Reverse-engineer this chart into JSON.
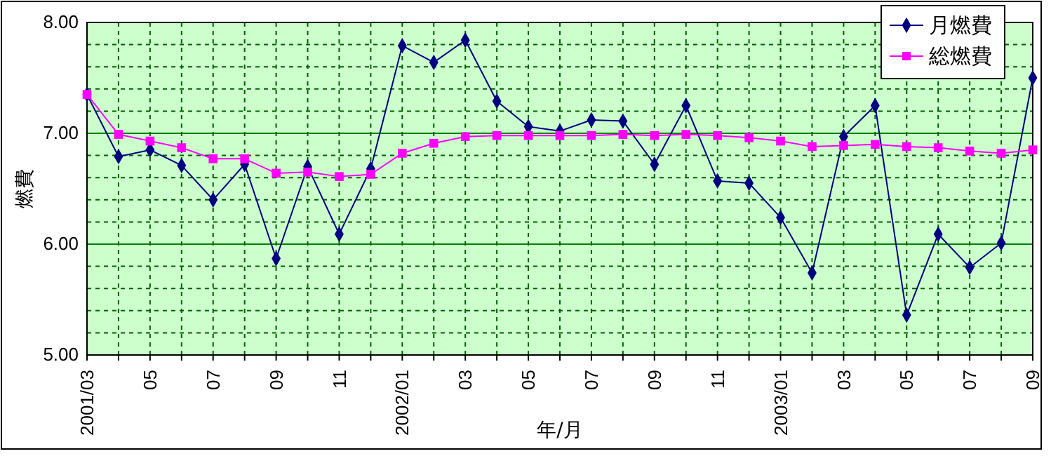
{
  "chart_data": {
    "type": "line",
    "xlabel": "年/月",
    "ylabel": "燃費",
    "categories": [
      "2001/03",
      null,
      "05",
      null,
      "07",
      null,
      "09",
      null,
      "11",
      null,
      "2002/01",
      null,
      "03",
      null,
      "05",
      null,
      "07",
      null,
      "09",
      null,
      "11",
      null,
      "2003/01",
      null,
      "03",
      null,
      "05",
      null,
      "07",
      null,
      "09"
    ],
    "series": [
      {
        "name": "月燃費",
        "color": "#000080",
        "marker": "diamond",
        "values": [
          7.35,
          6.79,
          6.85,
          6.71,
          6.4,
          6.72,
          5.87,
          6.7,
          6.09,
          6.68,
          7.79,
          7.64,
          7.84,
          7.29,
          7.06,
          7.02,
          7.12,
          7.11,
          6.72,
          7.25,
          6.57,
          6.55,
          6.24,
          5.74,
          6.97,
          7.25,
          5.36,
          6.09,
          5.79,
          6.01,
          7.5
        ]
      },
      {
        "name": "総燃費",
        "color": "#ff00ff",
        "marker": "square",
        "values": [
          7.35,
          6.99,
          6.93,
          6.87,
          6.77,
          6.77,
          6.64,
          6.65,
          6.61,
          6.63,
          6.82,
          6.91,
          6.97,
          6.98,
          6.98,
          6.98,
          6.98,
          6.99,
          6.98,
          6.99,
          6.98,
          6.96,
          6.93,
          6.88,
          6.89,
          6.9,
          6.88,
          6.87,
          6.84,
          6.82,
          6.85
        ]
      }
    ],
    "ylim": [
      5,
      8
    ],
    "yticks": [
      {
        "value": 5,
        "label": "5.00"
      },
      {
        "value": 5.2,
        "label": null
      },
      {
        "value": 5.4,
        "label": null
      },
      {
        "value": 5.6,
        "label": null
      },
      {
        "value": 5.8,
        "label": null
      },
      {
        "value": 6,
        "label": "6.00"
      },
      {
        "value": 6.2,
        "label": null
      },
      {
        "value": 6.4,
        "label": null
      },
      {
        "value": 6.6,
        "label": null
      },
      {
        "value": 6.8,
        "label": null
      },
      {
        "value": 7,
        "label": "7.00"
      },
      {
        "value": 7.2,
        "label": null
      },
      {
        "value": 7.4,
        "label": null
      },
      {
        "value": 7.6,
        "label": null
      },
      {
        "value": 7.8,
        "label": null
      },
      {
        "value": 8,
        "label": "8.00"
      }
    ],
    "grid": true,
    "legend": "top right",
    "line_style": "solid"
  }
}
